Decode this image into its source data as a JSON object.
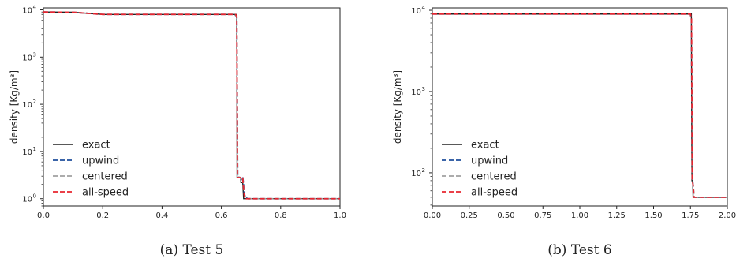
{
  "chart_data": [
    {
      "type": "line",
      "caption": "(a)  Test 5",
      "xlabel": "",
      "ylabel": "density [Kg/m³]",
      "xlim": [
        0.0,
        1.0
      ],
      "ylim": [
        0.7,
        11000
      ],
      "yscale": "log",
      "grid": false,
      "legend_position": "lower-left",
      "x_ticks": [
        0.0,
        0.2,
        0.4,
        0.6,
        0.8,
        1.0
      ],
      "x_tick_labels": [
        "0.0",
        "0.2",
        "0.4",
        "0.6",
        "0.8",
        "1.0"
      ],
      "y_ticks": [
        1,
        10,
        100,
        1000,
        10000
      ],
      "y_tick_labels": [
        "10",
        "10",
        "10",
        "10",
        "10"
      ],
      "y_tick_exponents": [
        "0",
        "1",
        "2",
        "3",
        "4"
      ],
      "series": [
        {
          "name": "exact",
          "color": "#222222",
          "dash": "solid",
          "x": [
            0.0,
            0.1,
            0.2,
            0.65,
            0.652,
            0.653,
            0.66,
            0.665,
            0.666,
            0.672,
            0.675,
            0.677,
            0.68,
            1.0
          ],
          "y": [
            9000,
            8900,
            8000,
            8000,
            8000,
            2.8,
            2.8,
            2.8,
            2.2,
            2.2,
            1.0,
            1.0,
            1.0,
            1.0
          ]
        },
        {
          "name": "upwind",
          "color": "#1f4e9c",
          "dash": "dashed",
          "x": [
            0.0,
            0.1,
            0.2,
            0.645,
            0.652,
            0.655,
            0.665,
            0.668,
            0.672,
            0.675,
            0.677,
            0.682,
            0.69,
            1.0
          ],
          "y": [
            9000,
            8900,
            8000,
            8000,
            7000,
            2.9,
            2.8,
            2.6,
            2.9,
            2.0,
            1.3,
            1.05,
            1.0,
            1.0
          ]
        },
        {
          "name": "centered",
          "color": "#a0a0a0",
          "dash": "dashed",
          "x": [
            0.0,
            0.1,
            0.2,
            0.645,
            0.652,
            0.655,
            0.665,
            0.668,
            0.672,
            0.675,
            0.678,
            0.683,
            0.69,
            1.0
          ],
          "y": [
            9000,
            8900,
            8000,
            8000,
            7000,
            2.9,
            2.8,
            2.5,
            2.7,
            1.8,
            1.2,
            1.05,
            1.0,
            1.0
          ]
        },
        {
          "name": "all-speed",
          "color": "#e8252f",
          "dash": "dashed",
          "x": [
            0.0,
            0.1,
            0.2,
            0.647,
            0.652,
            0.654,
            0.665,
            0.668,
            0.672,
            0.675,
            0.678,
            0.68,
            0.69,
            1.0
          ],
          "y": [
            9000,
            8900,
            8000,
            8000,
            7500,
            2.8,
            2.8,
            2.6,
            2.7,
            1.6,
            1.1,
            1.0,
            1.0,
            1.0
          ]
        }
      ]
    },
    {
      "type": "line",
      "caption": "(b)  Test 6",
      "xlabel": "",
      "ylabel": "density [Kg/m³]",
      "xlim": [
        0.0,
        2.0
      ],
      "ylim": [
        39,
        10700
      ],
      "yscale": "log",
      "grid": false,
      "legend_position": "lower-left",
      "x_ticks": [
        0.0,
        0.25,
        0.5,
        0.75,
        1.0,
        1.25,
        1.5,
        1.75,
        2.0
      ],
      "x_tick_labels": [
        "0.00",
        "0.25",
        "0.50",
        "0.75",
        "1.00",
        "1.25",
        "1.50",
        "1.75",
        "2.00"
      ],
      "y_ticks": [
        100,
        1000,
        10000
      ],
      "y_tick_labels": [
        "10",
        "10",
        "10"
      ],
      "y_tick_exponents": [
        "2",
        "3",
        "4"
      ],
      "series": [
        {
          "name": "exact",
          "color": "#222222",
          "dash": "solid",
          "x": [
            0.0,
            1.752,
            1.756,
            1.76,
            1.765,
            1.768,
            2.0
          ],
          "y": [
            9000,
            9000,
            9000,
            80,
            80,
            50,
            50
          ]
        },
        {
          "name": "upwind",
          "color": "#1f4e9c",
          "dash": "dashed",
          "x": [
            0.0,
            1.748,
            1.756,
            1.762,
            1.768,
            1.775,
            2.0
          ],
          "y": [
            9000,
            9000,
            8000,
            90,
            70,
            50,
            50
          ]
        },
        {
          "name": "centered",
          "color": "#a0a0a0",
          "dash": "dashed",
          "x": [
            0.0,
            1.748,
            1.757,
            1.763,
            1.769,
            1.776,
            2.0
          ],
          "y": [
            9000,
            9000,
            7500,
            85,
            68,
            50,
            50
          ]
        },
        {
          "name": "all-speed",
          "color": "#e8252f",
          "dash": "dashed",
          "x": [
            0.0,
            1.75,
            1.757,
            1.762,
            1.768,
            1.774,
            2.0
          ],
          "y": [
            9000,
            9000,
            7800,
            82,
            70,
            50,
            50
          ]
        }
      ]
    }
  ]
}
